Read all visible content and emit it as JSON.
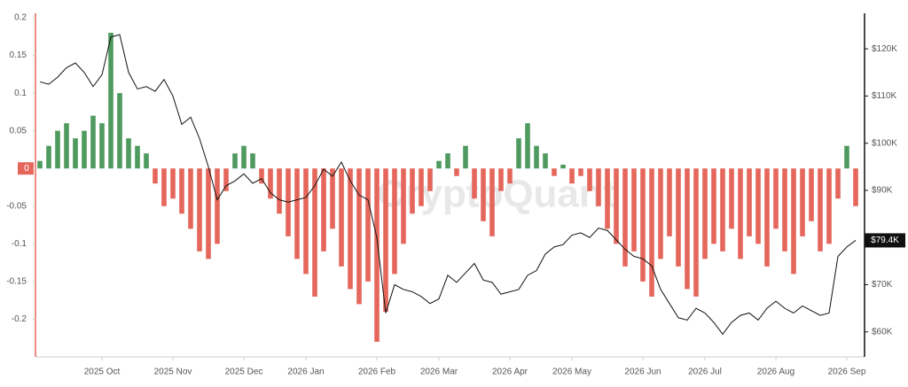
{
  "chart_data": {
    "type": "bar",
    "watermark": "CryptoQuant",
    "categories": [
      null,
      null,
      null,
      null,
      null,
      null,
      null,
      "2025 Oct",
      null,
      null,
      null,
      null,
      null,
      null,
      null,
      "2025 Nov",
      null,
      null,
      null,
      null,
      null,
      null,
      null,
      "2025 Dec",
      null,
      null,
      null,
      null,
      null,
      null,
      "2026 Jan",
      null,
      null,
      null,
      null,
      null,
      null,
      null,
      "2026 Feb",
      null,
      null,
      null,
      null,
      null,
      null,
      "2026 Mar",
      null,
      null,
      null,
      null,
      null,
      null,
      null,
      "2026 Apr",
      null,
      null,
      null,
      null,
      null,
      null,
      "2026 May",
      null,
      null,
      null,
      null,
      null,
      null,
      null,
      "2026 Jun",
      null,
      null,
      null,
      null,
      null,
      null,
      "2026 Jul",
      null,
      null,
      null,
      null,
      null,
      null,
      null,
      "2026 Aug",
      null,
      null,
      null,
      null,
      null,
      null,
      null,
      "2026 Sep",
      null
    ],
    "series": [
      {
        "positive_color": "#4f9a5f",
        "negative_color": "#e5675c",
        "values": [
          0.01,
          0.03,
          0.05,
          0.06,
          0.04,
          0.05,
          0.07,
          0.06,
          0.18,
          0.1,
          0.04,
          0.03,
          0.02,
          -0.02,
          -0.05,
          -0.04,
          -0.06,
          -0.08,
          -0.11,
          -0.12,
          -0.1,
          -0.03,
          0.02,
          0.03,
          0.02,
          -0.02,
          -0.04,
          -0.06,
          -0.09,
          -0.12,
          -0.14,
          -0.17,
          -0.11,
          -0.08,
          -0.13,
          -0.16,
          -0.18,
          -0.15,
          -0.23,
          -0.19,
          -0.14,
          -0.1,
          -0.06,
          -0.05,
          -0.03,
          0.01,
          0.02,
          -0.01,
          0.03,
          -0.04,
          -0.07,
          -0.09,
          -0.03,
          -0.02,
          0.04,
          0.06,
          0.03,
          0.02,
          -0.01,
          0.005,
          -0.02,
          -0.01,
          -0.03,
          -0.05,
          -0.08,
          -0.1,
          -0.13,
          -0.11,
          -0.15,
          -0.17,
          -0.12,
          -0.09,
          -0.13,
          -0.16,
          -0.17,
          -0.12,
          -0.1,
          -0.11,
          -0.08,
          -0.12,
          -0.09,
          -0.1,
          -0.13,
          -0.08,
          -0.11,
          -0.14,
          -0.09,
          -0.07,
          -0.11,
          -0.1,
          -0.04,
          0.03,
          -0.05
        ]
      },
      {
        "type": "line",
        "axis": "y2",
        "color": "#111111",
        "values": [
          113000,
          112500,
          114000,
          116000,
          117000,
          115000,
          112000,
          114500,
          122500,
          123000,
          115000,
          111500,
          112000,
          111000,
          113500,
          110000,
          104000,
          105500,
          101000,
          95000,
          88000,
          91000,
          92000,
          93500,
          91500,
          92500,
          89500,
          88000,
          87500,
          88000,
          88500,
          91000,
          94500,
          93000,
          96000,
          92000,
          89000,
          88000,
          80000,
          64000,
          70000,
          69000,
          68500,
          67500,
          66000,
          67000,
          72000,
          70500,
          72500,
          74500,
          71000,
          70500,
          68000,
          68500,
          69000,
          72000,
          73000,
          76500,
          78000,
          78500,
          80500,
          81000,
          80000,
          82000,
          81500,
          79500,
          77500,
          76000,
          75500,
          74000,
          69000,
          66000,
          63000,
          62500,
          65000,
          64000,
          62000,
          59500,
          62000,
          63500,
          64000,
          62500,
          65000,
          66500,
          65000,
          64000,
          65500,
          64500,
          63500,
          64000,
          76000,
          78000,
          79400
        ],
        "value_labels": [
          null,
          null,
          null,
          null,
          null,
          null,
          null,
          null,
          null,
          null,
          null,
          null,
          null,
          null,
          null,
          null,
          null,
          null,
          null,
          null,
          null,
          null,
          null,
          null,
          null,
          null,
          null,
          null,
          null,
          null,
          null,
          null,
          null,
          null,
          null,
          null,
          null,
          null,
          null,
          null,
          null,
          null,
          null,
          null,
          null,
          null,
          null,
          null,
          null,
          null,
          null,
          null,
          null,
          null,
          null,
          null,
          null,
          null,
          null,
          null,
          null,
          null,
          null,
          null,
          null,
          null,
          null,
          null,
          null,
          null,
          null,
          null,
          null,
          null,
          null,
          null,
          null,
          null,
          null,
          null,
          null,
          null,
          null,
          null,
          null,
          null,
          null,
          null,
          null,
          null,
          null,
          null,
          "$79.4K"
        ]
      }
    ],
    "ylim": [
      -0.25,
      0.2
    ],
    "yticks": [
      -0.2,
      -0.15,
      -0.1,
      -0.05,
      0,
      0.05,
      0.1,
      0.15,
      0.2
    ],
    "y2lim": [
      54700,
      126600
    ],
    "y2ticks": [
      {
        "value": 60000,
        "label": "$60K"
      },
      {
        "value": 70000,
        "label": "$70K"
      },
      {
        "value": 80000,
        "label": "$80K"
      },
      {
        "value": 90000,
        "label": "$90K"
      },
      {
        "value": 100000,
        "label": "$100K"
      },
      {
        "value": 110000,
        "label": "$110K"
      },
      {
        "value": 120000,
        "label": "$120K"
      }
    ],
    "grid": false
  }
}
